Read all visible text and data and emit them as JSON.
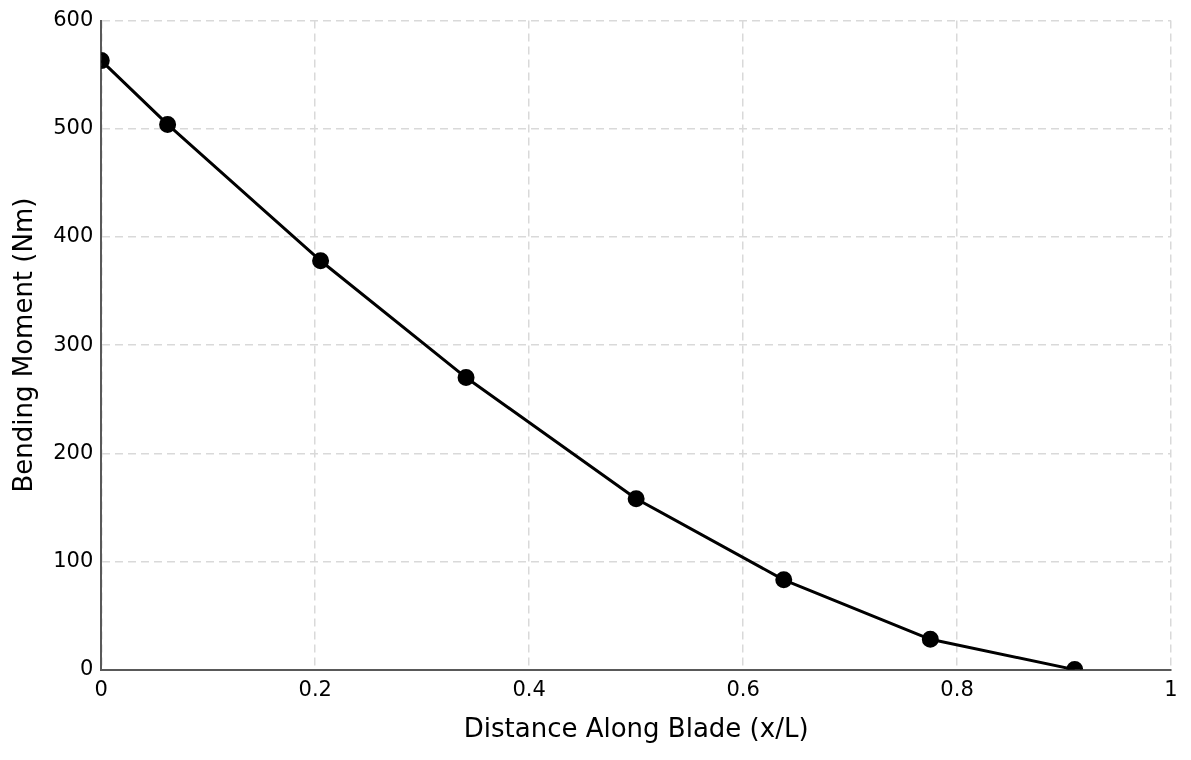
{
  "chart_data": {
    "type": "line",
    "xlabel": "Distance Along Blade (x/L)",
    "ylabel": "Bending Moment (Nm)",
    "x": [
      0,
      0.062,
      0.205,
      0.341,
      0.5,
      0.638,
      0.775,
      0.91
    ],
    "series": [
      {
        "color": "#000000",
        "values": [
          563,
          504,
          378,
          270,
          158,
          83,
          28,
          0
        ]
      }
    ],
    "xlim": [
      0,
      1
    ],
    "xticks": [
      0,
      0.2,
      0.4,
      0.6,
      0.8,
      1
    ],
    "ylim": [
      0,
      600
    ],
    "yticks": [
      0,
      100,
      200,
      300,
      400,
      500,
      600
    ],
    "grid": true,
    "legend": false,
    "marker": "circle",
    "line_style": "solid"
  }
}
